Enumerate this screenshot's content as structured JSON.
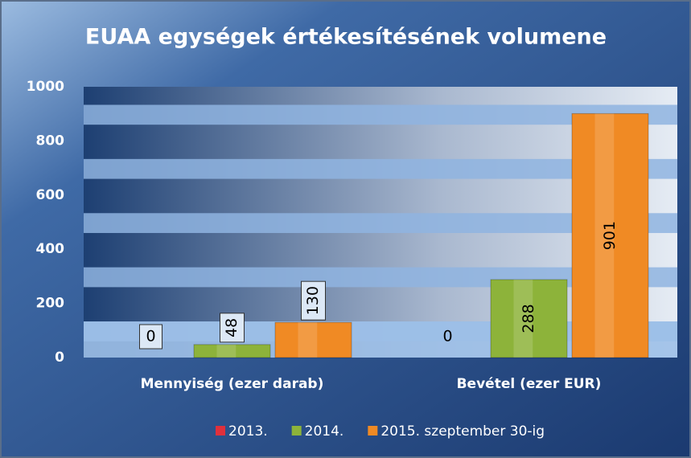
{
  "chart_data": {
    "type": "bar",
    "title": "EUAA egységek értékesítésének volumene",
    "categories": [
      "Mennyiség (ezer darab)",
      "Bevétel (ezer EUR)"
    ],
    "series": [
      {
        "name": "2013.",
        "color": "#e0303c",
        "values": [
          0,
          0
        ]
      },
      {
        "name": "2014.",
        "color": "#8db33a",
        "values": [
          48,
          288
        ]
      },
      {
        "name": "2015. szeptember 30-ig",
        "color": "#f08a24",
        "values": [
          130,
          901
        ]
      }
    ],
    "ylim": [
      0,
      1000
    ],
    "yticks": [
      0,
      200,
      400,
      600,
      800,
      1000
    ],
    "legend": "bottom"
  }
}
